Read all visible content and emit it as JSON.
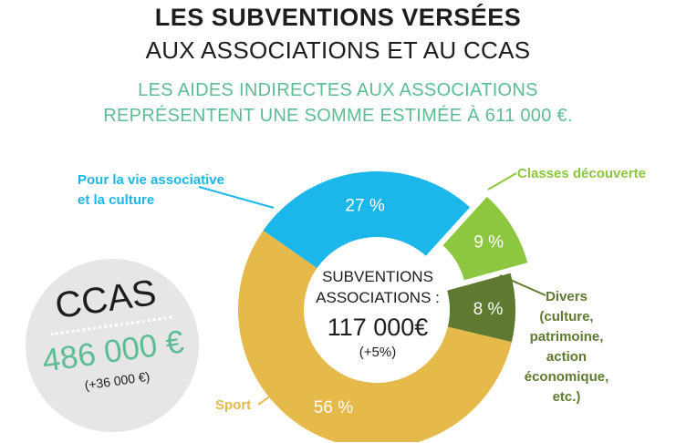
{
  "header": {
    "title_bold": "LES SUBVENTIONS VERSÉES",
    "title_regular": "AUX ASSOCIATIONS ET AU CCAS",
    "subtitle_line1": "LES AIDES INDIRECTES AUX ASSOCIATIONS",
    "subtitle_line2": "REPRÉSENTENT UNE SOMME ESTIMÉE À 611 000 €."
  },
  "ccas": {
    "label": "CCAS",
    "amount": "486 000 €",
    "change": "(+36 000 €)"
  },
  "chart_data": {
    "type": "pie",
    "center": {
      "line1": "SUBVENTIONS",
      "line2": "ASSOCIATIONS :",
      "amount": "117 000€",
      "change": "(+5%)"
    },
    "slices": [
      {
        "label_lines": [
          "Pour la vie associative",
          "et la culture"
        ],
        "value": 27,
        "value_label": "27 %",
        "color": "#1bb7ea"
      },
      {
        "label_lines": [
          "Classes découverte"
        ],
        "value": 9,
        "value_label": "9 %",
        "color": "#8dc63f",
        "exploded": true
      },
      {
        "label_lines": [
          "Divers",
          "(culture,",
          "patrimoine,",
          "action",
          "économique,",
          "etc.)"
        ],
        "value": 8,
        "value_label": "8 %",
        "color": "#5f7a30"
      },
      {
        "label_lines": [
          "Sport"
        ],
        "value": 56,
        "value_label": "56 %",
        "color": "#e5b94a"
      }
    ],
    "label_colors": [
      "#1bb7ea",
      "#8dc63f",
      "#5f7a30",
      "#e5b94a"
    ]
  }
}
